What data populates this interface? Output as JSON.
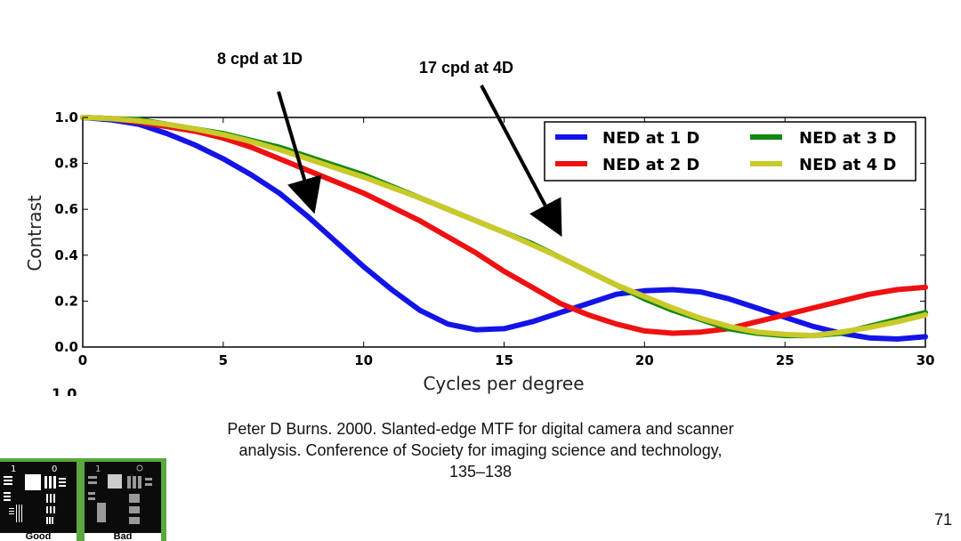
{
  "callouts": {
    "left": "8 cpd at 1D",
    "right": "17 cpd at 4D"
  },
  "citation": {
    "line1": "Peter D Burns. 2000. Slanted-edge MTF for digital camera and scanner",
    "line2": "analysis. Conference of Society for imaging science and technology,",
    "line3": "135–138"
  },
  "page_number": "71",
  "thumbnail": {
    "good_label": "Good",
    "bad_label": "Bad",
    "good_number": "1",
    "good_number2": "0",
    "bad_number": "1"
  },
  "chart_data": {
    "type": "line",
    "xlabel": "Cycles per degree",
    "ylabel": "Contrast",
    "xlim": [
      0,
      30
    ],
    "ylim": [
      0,
      1.0
    ],
    "x_ticks": [
      "0",
      "5",
      "10",
      "15",
      "20",
      "25",
      "30"
    ],
    "y_ticks": [
      "0.0",
      "0.2",
      "0.4",
      "0.6",
      "0.8",
      "1.0"
    ],
    "cut_tick_label": "1.0",
    "grid": false,
    "legend_position": "top-right",
    "series": [
      {
        "name": "NED at 1 D",
        "color": "#1414e6",
        "x": [
          0,
          1,
          2,
          3,
          4,
          5,
          6,
          7,
          8,
          9,
          10,
          11,
          12,
          13,
          14,
          15,
          16,
          17,
          18,
          19,
          20,
          21,
          22,
          23,
          24,
          25,
          26,
          27,
          28,
          29,
          30
        ],
        "y": [
          1.0,
          0.99,
          0.97,
          0.93,
          0.88,
          0.82,
          0.75,
          0.67,
          0.57,
          0.46,
          0.35,
          0.25,
          0.16,
          0.1,
          0.075,
          0.08,
          0.11,
          0.15,
          0.19,
          0.23,
          0.245,
          0.25,
          0.24,
          0.21,
          0.17,
          0.13,
          0.09,
          0.06,
          0.04,
          0.035,
          0.045
        ]
      },
      {
        "name": "NED at 2 D",
        "color": "#ee1111",
        "x": [
          0,
          1,
          2,
          3,
          4,
          5,
          6,
          7,
          8,
          9,
          10,
          11,
          12,
          13,
          14,
          15,
          16,
          17,
          18,
          19,
          20,
          21,
          22,
          23,
          24,
          25,
          26,
          27,
          28,
          29,
          30
        ],
        "y": [
          1.0,
          0.995,
          0.98,
          0.96,
          0.94,
          0.91,
          0.87,
          0.82,
          0.77,
          0.72,
          0.67,
          0.61,
          0.55,
          0.48,
          0.41,
          0.33,
          0.26,
          0.19,
          0.14,
          0.1,
          0.07,
          0.06,
          0.065,
          0.08,
          0.11,
          0.14,
          0.17,
          0.2,
          0.23,
          0.25,
          0.26
        ]
      },
      {
        "name": "NED at 3 D",
        "color": "#118811",
        "x": [
          0,
          1,
          2,
          3,
          4,
          5,
          6,
          7,
          8,
          9,
          10,
          11,
          12,
          13,
          14,
          15,
          16,
          17,
          18,
          19,
          20,
          21,
          22,
          23,
          24,
          25,
          26,
          27,
          28,
          29,
          30
        ],
        "y": [
          1.0,
          0.995,
          0.99,
          0.97,
          0.95,
          0.93,
          0.9,
          0.87,
          0.83,
          0.79,
          0.75,
          0.7,
          0.65,
          0.6,
          0.55,
          0.5,
          0.45,
          0.39,
          0.33,
          0.27,
          0.21,
          0.16,
          0.12,
          0.08,
          0.06,
          0.05,
          0.05,
          0.06,
          0.09,
          0.12,
          0.15
        ]
      },
      {
        "name": "NED at 4 D",
        "color": "#c9c92a",
        "x": [
          0,
          1,
          2,
          3,
          4,
          5,
          6,
          7,
          8,
          9,
          10,
          11,
          12,
          13,
          14,
          15,
          16,
          17,
          18,
          19,
          20,
          21,
          22,
          23,
          24,
          25,
          26,
          27,
          28,
          29,
          30
        ],
        "y": [
          1.0,
          0.995,
          0.985,
          0.97,
          0.95,
          0.925,
          0.895,
          0.86,
          0.82,
          0.78,
          0.74,
          0.695,
          0.65,
          0.6,
          0.55,
          0.5,
          0.445,
          0.39,
          0.33,
          0.27,
          0.22,
          0.17,
          0.125,
          0.09,
          0.065,
          0.055,
          0.05,
          0.065,
          0.085,
          0.11,
          0.14
        ]
      }
    ]
  }
}
